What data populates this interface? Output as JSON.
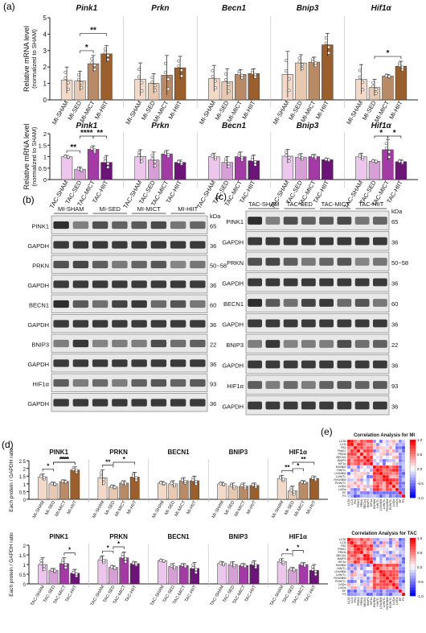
{
  "panel_labels": {
    "a": "(a)",
    "b": "(b)",
    "c": "(c)",
    "d": "(d)",
    "e": "(e)"
  },
  "colors": {
    "sham_mi": "#f3d9c8",
    "sed_mi": "#e6c9b0",
    "mict_mi": "#b98a66",
    "hiit_mi": "#9b5f2c",
    "sham_tac": "#ecc6ec",
    "sed_tac": "#d69fd6",
    "mict_tac": "#a43aa6",
    "hiit_tac": "#6d1478",
    "edge": "#333333"
  },
  "chart_data": [
    {
      "type": "bar",
      "panel": "a",
      "row": "MI",
      "ylabel": "Relative mRNA level",
      "ylabel2": "(normalized to SHAM)",
      "ylim": [
        0,
        5
      ],
      "yticks": [
        0,
        1,
        2,
        3,
        4,
        5
      ],
      "categories": [
        "MI-SHAM",
        "MI-SED",
        "MI-MICT",
        "MI-HIIT"
      ],
      "genes": [
        {
          "name": "Pink1",
          "values": [
            1.2,
            1.15,
            2.2,
            2.8
          ],
          "err": [
            0.8,
            0.6,
            0.5,
            0.5
          ],
          "sig": [
            {
              "from": 1,
              "to": 2,
              "label": "*"
            },
            {
              "from": 1,
              "to": 3,
              "label": "**"
            }
          ]
        },
        {
          "name": "Prkn",
          "values": [
            1.25,
            1.0,
            1.5,
            1.95
          ],
          "err": [
            1.0,
            0.6,
            1.2,
            0.7
          ],
          "sig": []
        },
        {
          "name": "Becn1",
          "values": [
            1.3,
            1.1,
            1.55,
            1.6
          ],
          "err": [
            0.8,
            0.8,
            0.3,
            0.3
          ],
          "sig": []
        },
        {
          "name": "Bnip3",
          "values": [
            1.55,
            2.25,
            2.3,
            3.35
          ],
          "err": [
            1.4,
            0.5,
            0.3,
            0.7
          ],
          "sig": []
        },
        {
          "name": "Hif1α",
          "values": [
            1.25,
            0.75,
            1.45,
            2.05
          ],
          "err": [
            0.9,
            0.5,
            0.1,
            0.3
          ],
          "sig": [
            {
              "from": 1,
              "to": 3,
              "label": "*"
            }
          ]
        }
      ]
    },
    {
      "type": "bar",
      "panel": "a",
      "row": "TAC",
      "ylabel": "Relative mRNA level",
      "ylabel2": "(normalized to SHAM)",
      "ylim": [
        0,
        2
      ],
      "yticks": [
        0.0,
        0.5,
        1.0,
        1.5,
        2.0
      ],
      "categories": [
        "TAC-SHAM",
        "TAC-SED",
        "TAC-MICT",
        "TAC-HIIT"
      ],
      "genes": [
        {
          "name": "Pink1",
          "values": [
            1.0,
            0.45,
            1.32,
            0.75
          ],
          "err": [
            0.05,
            0.1,
            0.15,
            0.3
          ],
          "sig": [
            {
              "from": 0,
              "to": 1,
              "label": "**"
            },
            {
              "from": 1,
              "to": 2,
              "label": "****"
            },
            {
              "from": 2,
              "to": 3,
              "label": "**"
            }
          ]
        },
        {
          "name": "Prkn",
          "values": [
            1.0,
            0.85,
            1.12,
            0.75
          ],
          "err": [
            0.3,
            0.35,
            0.15,
            0.1
          ],
          "sig": []
        },
        {
          "name": "Becn1",
          "values": [
            1.0,
            0.75,
            1.0,
            0.82
          ],
          "err": [
            0.15,
            0.25,
            0.2,
            0.25
          ],
          "sig": []
        },
        {
          "name": "Bnip3",
          "values": [
            1.02,
            0.98,
            1.0,
            0.87
          ],
          "err": [
            0.3,
            0.15,
            0.1,
            0.05
          ],
          "sig": []
        },
        {
          "name": "Hif1α",
          "values": [
            1.0,
            0.8,
            1.3,
            0.78
          ],
          "err": [
            0.15,
            0.05,
            0.45,
            0.08
          ],
          "sig": [
            {
              "from": 1,
              "to": 2,
              "label": "*"
            },
            {
              "from": 2,
              "to": 3,
              "label": "*"
            }
          ]
        }
      ]
    },
    {
      "type": "bar",
      "panel": "d",
      "row": "MI",
      "ylabel": "Each protein / GAPDH ratio",
      "ylim": [
        0,
        2.5
      ],
      "yticks": [
        0.0,
        0.5,
        1.0,
        1.5,
        2.0,
        2.5
      ],
      "categories": [
        "MI-SHAM",
        "MI-SED",
        "MI-MICT",
        "MI-HIIT"
      ],
      "genes": [
        {
          "name": "PINK1",
          "values": [
            1.45,
            1.0,
            1.15,
            1.9
          ],
          "err": [
            0.2,
            0.1,
            0.1,
            0.2
          ],
          "sig": [
            {
              "from": 0,
              "to": 1,
              "label": "*"
            },
            {
              "from": 1,
              "to": 3,
              "label": "****"
            },
            {
              "from": 1,
              "to": 3,
              "label": "***"
            }
          ]
        },
        {
          "name": "PRKN",
          "values": [
            1.4,
            0.8,
            1.05,
            1.45
          ],
          "err": [
            0.5,
            0.1,
            0.15,
            0.3
          ],
          "sig": [
            {
              "from": 0,
              "to": 1,
              "label": "**"
            },
            {
              "from": 1,
              "to": 3,
              "label": "*"
            }
          ]
        },
        {
          "name": "BECN1",
          "values": [
            1.05,
            1.0,
            1.2,
            1.2
          ],
          "err": [
            0.1,
            0.2,
            0.2,
            0.3
          ],
          "sig": []
        },
        {
          "name": "BNIP3",
          "values": [
            1.0,
            0.85,
            0.85,
            0.9
          ],
          "err": [
            0.1,
            0.2,
            0.2,
            0.15
          ],
          "sig": []
        },
        {
          "name": "HIF1α",
          "values": [
            1.35,
            0.55,
            1.1,
            1.35
          ],
          "err": [
            0.2,
            0.3,
            0.1,
            0.15
          ],
          "sig": [
            {
              "from": 0,
              "to": 1,
              "label": "**"
            },
            {
              "from": 1,
              "to": 2,
              "label": "*"
            },
            {
              "from": 1,
              "to": 3,
              "label": "**"
            }
          ]
        }
      ]
    },
    {
      "type": "bar",
      "panel": "d",
      "row": "TAC",
      "ylabel": "Each protein / GAPDH ratio",
      "ylim": [
        0,
        2.0
      ],
      "yticks": [
        0.0,
        0.5,
        1.0,
        1.5,
        2.0
      ],
      "categories": [
        "TAC-SHAM",
        "TAC-SED",
        "TAC-MICT",
        "TAC-HIIT"
      ],
      "genes": [
        {
          "name": "PINK1",
          "values": [
            1.0,
            0.7,
            1.05,
            0.55
          ],
          "err": [
            0.35,
            0.1,
            0.3,
            0.2
          ],
          "sig": [
            {
              "from": 2,
              "to": 3,
              "label": "*"
            }
          ]
        },
        {
          "name": "PRKN",
          "values": [
            1.25,
            0.85,
            1.35,
            1.05
          ],
          "err": [
            0.2,
            0.1,
            0.3,
            0.1
          ],
          "sig": [
            {
              "from": 0,
              "to": 1,
              "label": "*"
            },
            {
              "from": 1,
              "to": 2,
              "label": "*"
            }
          ]
        },
        {
          "name": "BECN1",
          "values": [
            1.2,
            0.9,
            0.95,
            0.8
          ],
          "err": [
            0.05,
            0.15,
            0.1,
            0.3
          ],
          "sig": []
        },
        {
          "name": "BNIP3",
          "values": [
            1.05,
            1.0,
            0.95,
            1.0
          ],
          "err": [
            0.1,
            0.15,
            0.1,
            0.2
          ],
          "sig": []
        },
        {
          "name": "HIF1α",
          "values": [
            1.15,
            0.75,
            1.0,
            0.7
          ],
          "err": [
            0.15,
            0.1,
            0.1,
            0.3
          ],
          "sig": [
            {
              "from": 0,
              "to": 1,
              "label": "*"
            },
            {
              "from": 1,
              "to": 2,
              "label": "*"
            }
          ]
        }
      ]
    },
    {
      "type": "heatmap",
      "panel": "e",
      "title": "Correlation Analysis for MI",
      "labels": [
        "LC3II",
        "LC3I",
        "P62",
        "PINK1",
        "PRKN",
        "BECN1",
        "BNIP3",
        "HIF1α",
        "HW/BW",
        "HW/TL",
        "LVW/BW",
        "LVW/TL",
        "RVW/BW",
        "RVW/TL",
        "LVIDd",
        "LVIDs",
        "EF",
        "FS"
      ],
      "colorbar": {
        "ticks": [
          "1.0",
          "0.5",
          "0.0",
          "-0.5",
          "-1.0"
        ]
      }
    },
    {
      "type": "heatmap",
      "panel": "e",
      "title": "Correlation Analysis for TAC",
      "labels": [
        "LC3II",
        "LC3I",
        "P62",
        "PINK1",
        "PRKN",
        "BECN1",
        "BNIP3",
        "HIF1α",
        "HW/BW",
        "HW/TL",
        "LVW/BW",
        "LVW/TL",
        "RVW/BW",
        "RVW/TL",
        "LVIDd",
        "LVIDs",
        "EF",
        "FS"
      ],
      "colorbar": {
        "ticks": [
          "1.0",
          "0.5",
          "0.0",
          "-0.5",
          "-1.0"
        ]
      }
    }
  ],
  "blot_b": {
    "groups": [
      "MI-SHAM",
      "MI-SED",
      "MI-MICT",
      "MI-HIIT"
    ],
    "kda_label": "kDa",
    "rows": [
      {
        "name": "PINK1",
        "kda": "65"
      },
      {
        "name": "GAPDH",
        "kda": "36"
      },
      {
        "name": "PRKN",
        "kda": "50~58"
      },
      {
        "name": "GAPDH",
        "kda": "36"
      },
      {
        "name": "BECN1",
        "kda": "60"
      },
      {
        "name": "GAPDH",
        "kda": "36"
      },
      {
        "name": "BNIP3",
        "kda": "22"
      },
      {
        "name": "GAPDH",
        "kda": "36"
      },
      {
        "name": "HIF1α",
        "kda": "93"
      },
      {
        "name": "GAPDH",
        "kda": "36"
      }
    ]
  },
  "blot_c": {
    "groups": [
      "TAC-SHAM",
      "TAC-SED",
      "TAC-MICT",
      "TAC-HIIT"
    ],
    "kda_label": "kDa",
    "rows": [
      {
        "name": "PINK1",
        "kda": "65"
      },
      {
        "name": "GAPDH",
        "kda": "36"
      },
      {
        "name": "PRKN",
        "kda": "50~58"
      },
      {
        "name": "GAPDH",
        "kda": "36"
      },
      {
        "name": "BECN1",
        "kda": "60"
      },
      {
        "name": "GAPDH",
        "kda": "36"
      },
      {
        "name": "BNIP3",
        "kda": "22"
      },
      {
        "name": "GAPDH",
        "kda": "36"
      },
      {
        "name": "HIF1α",
        "kda": "93"
      },
      {
        "name": "GAPDH",
        "kda": "36"
      }
    ]
  }
}
